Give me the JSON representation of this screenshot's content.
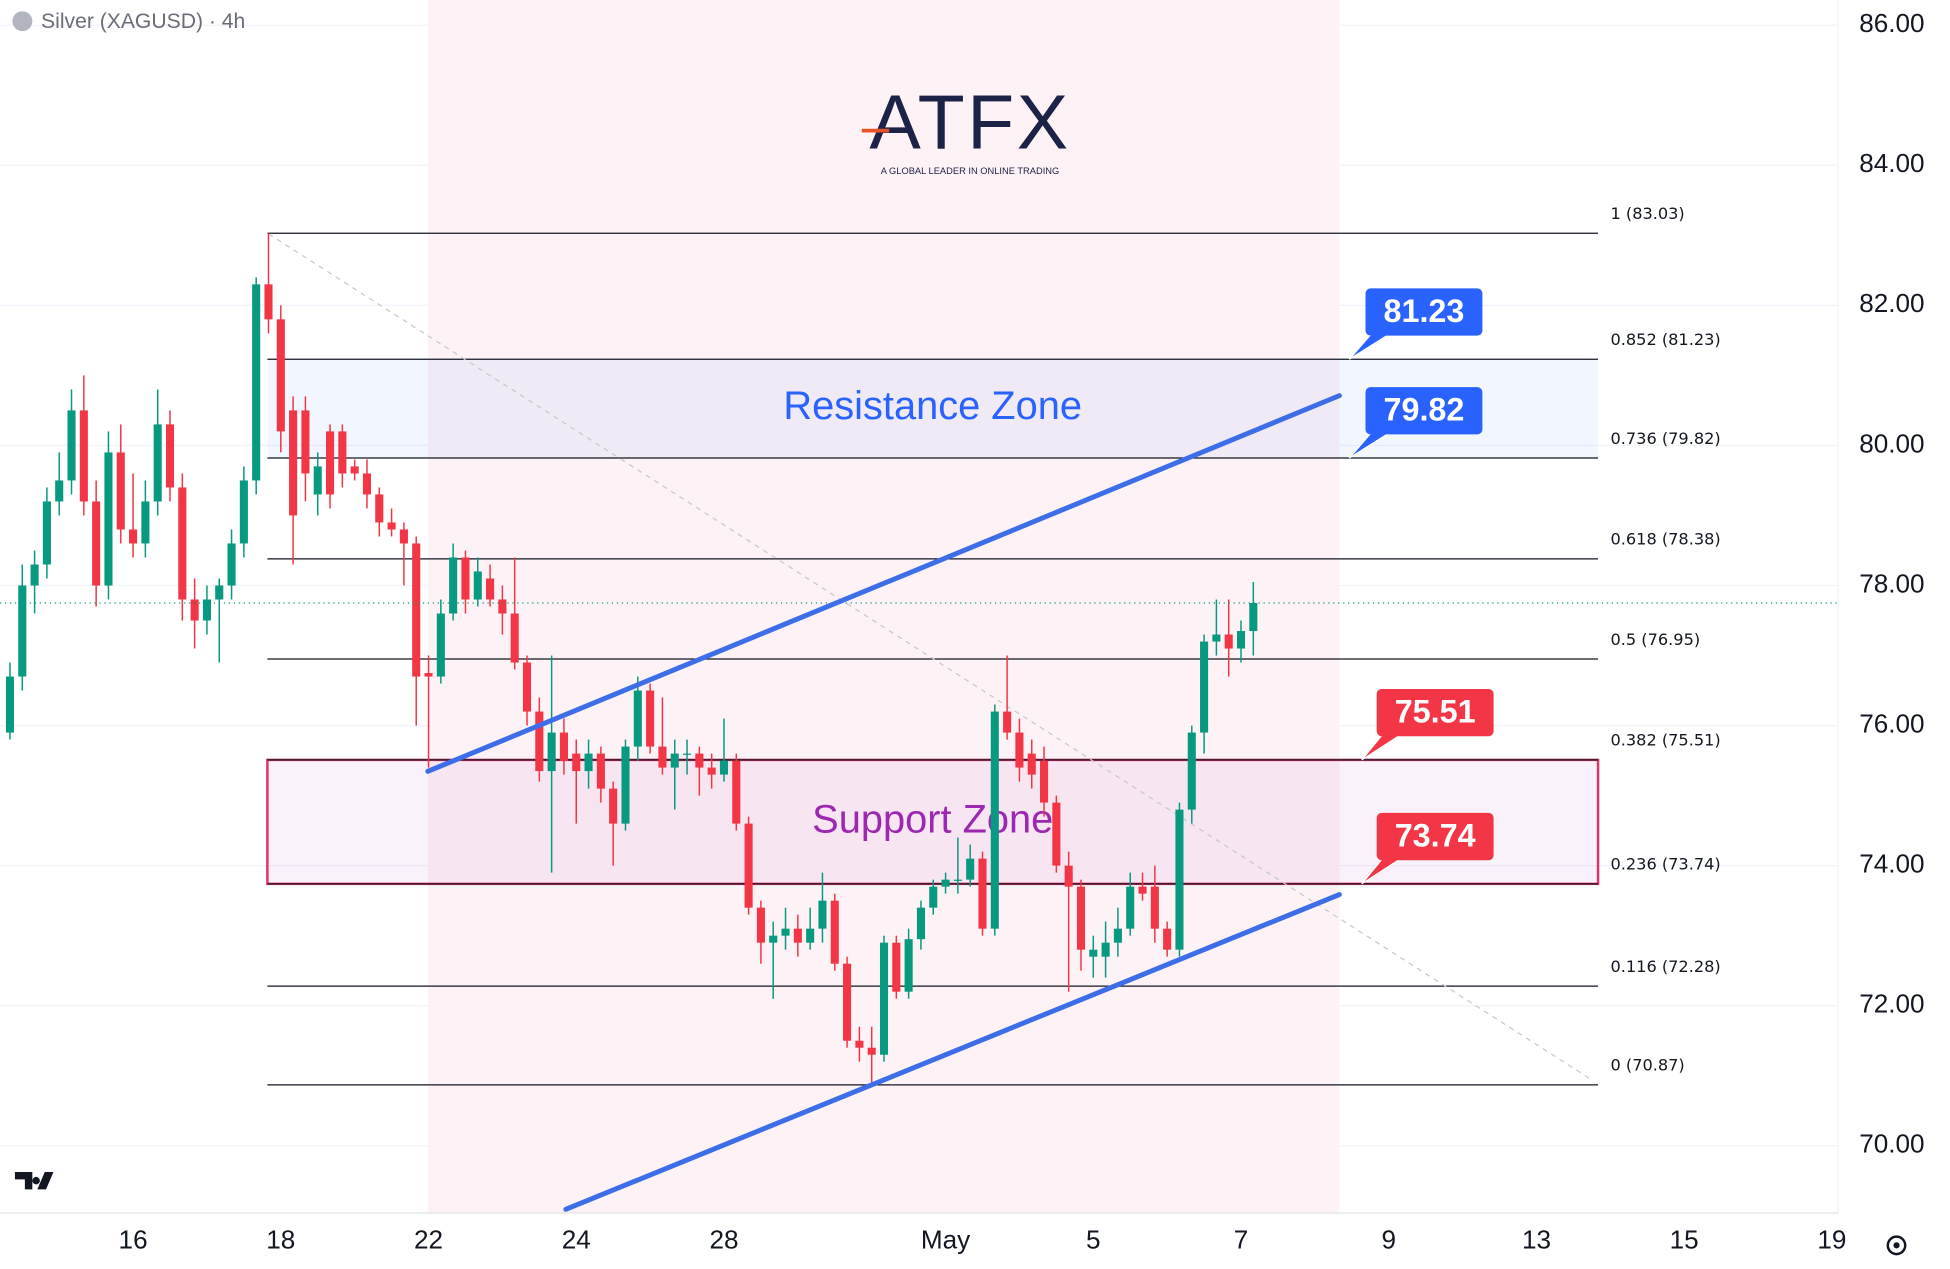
{
  "chart_data": {
    "type": "candlestick",
    "title": "Silver (XAGUSD) · 4h",
    "logo": {
      "text": "ATFX",
      "tagline": "A GLOBAL LEADER IN ONLINE TRADING"
    },
    "xlim": [
      -0.81,
      148.5
    ],
    "ylim": [
      69.04,
      86.36
    ],
    "grid": true,
    "xticks": [
      {
        "value": 10,
        "label": "16"
      },
      {
        "value": 22,
        "label": "18"
      },
      {
        "value": 34,
        "label": "22"
      },
      {
        "value": 46,
        "label": "24"
      },
      {
        "value": 58,
        "label": "28"
      },
      {
        "value": 76,
        "label": "May"
      },
      {
        "value": 88,
        "label": "5"
      },
      {
        "value": 100,
        "label": "7"
      },
      {
        "value": 112,
        "label": "9"
      },
      {
        "value": 124,
        "label": "13"
      },
      {
        "value": 136,
        "label": "15"
      },
      {
        "value": 148,
        "label": "19"
      }
    ],
    "yticks": [
      {
        "value": 70,
        "label": "70.00"
      },
      {
        "value": 72,
        "label": "72.00"
      },
      {
        "value": 74,
        "label": "74.00"
      },
      {
        "value": 76,
        "label": "76.00"
      },
      {
        "value": 78,
        "label": "78.00"
      },
      {
        "value": 80,
        "label": "80.00"
      },
      {
        "value": 82,
        "label": "82.00"
      },
      {
        "value": 84,
        "label": "84.00"
      },
      {
        "value": 86,
        "label": "86.00"
      }
    ],
    "up_color": "#089981",
    "down_color": "#f23645",
    "x": [
      0,
      1,
      2,
      3,
      4,
      5,
      6,
      7,
      8,
      9,
      10,
      11,
      12,
      13,
      14,
      15,
      16,
      17,
      18,
      19,
      20,
      21,
      22,
      23,
      24,
      25,
      26,
      27,
      28,
      29,
      30,
      31,
      32,
      33,
      34,
      35,
      36,
      37,
      38,
      39,
      40,
      41,
      42,
      43,
      44,
      45,
      46,
      47,
      48,
      49,
      50,
      51,
      52,
      53,
      54,
      55,
      56,
      57,
      58,
      59,
      60,
      61,
      62,
      63,
      64,
      65,
      66,
      67,
      68,
      69,
      70,
      71,
      72,
      73,
      74,
      75,
      76,
      77,
      78,
      79,
      80,
      81,
      82,
      83,
      84,
      85,
      86,
      87,
      88,
      89,
      90,
      91,
      92,
      93,
      94,
      95,
      96,
      97,
      98,
      99,
      100,
      101
    ],
    "open": [
      75.9,
      76.7,
      78.0,
      78.3,
      79.2,
      79.5,
      80.5,
      79.2,
      78.0,
      79.9,
      78.8,
      78.6,
      79.2,
      80.3,
      79.4,
      77.8,
      77.5,
      77.8,
      78.0,
      78.6,
      79.5,
      82.3,
      81.8,
      80.5,
      80.5,
      79.3,
      80.2,
      80.2,
      79.7,
      79.6,
      79.3,
      78.9,
      78.8,
      78.6,
      76.75,
      76.7,
      77.6,
      78.4,
      77.8,
      78.1,
      77.8,
      77.6,
      76.9,
      76.2,
      75.35,
      75.9,
      75.6,
      75.35,
      75.6,
      75.1,
      74.6,
      75.7,
      76.5,
      75.7,
      75.4,
      75.6,
      75.6,
      75.4,
      75.3,
      75.5,
      74.6,
      73.4,
      72.9,
      73.0,
      73.1,
      72.9,
      73.1,
      73.5,
      72.6,
      71.5,
      71.4,
      71.3,
      72.9,
      72.2,
      72.95,
      73.4,
      73.7,
      73.8,
      73.8,
      74.1,
      73.1,
      76.2,
      75.9,
      75.6,
      75.5,
      74.9,
      74.0,
      73.7,
      72.7,
      72.7,
      72.9,
      73.1,
      73.7,
      73.7,
      73.1,
      72.8,
      74.8,
      75.9,
      77.2,
      77.3,
      77.1,
      77.35
    ],
    "high": [
      76.9,
      78.3,
      78.5,
      79.4,
      79.9,
      80.8,
      81.0,
      79.5,
      80.2,
      80.3,
      79.6,
      79.5,
      80.8,
      80.5,
      79.6,
      78.1,
      78.0,
      78.1,
      78.8,
      79.7,
      82.4,
      83.03,
      82.0,
      80.7,
      80.7,
      79.9,
      80.3,
      80.3,
      79.8,
      79.8,
      79.4,
      79.1,
      78.9,
      78.7,
      77.0,
      77.8,
      78.6,
      78.5,
      78.4,
      78.3,
      78.0,
      78.4,
      77.0,
      76.4,
      77.0,
      76.1,
      75.8,
      75.8,
      75.7,
      75.2,
      75.8,
      76.7,
      76.6,
      76.4,
      75.8,
      75.8,
      75.7,
      75.6,
      76.1,
      75.6,
      74.7,
      73.5,
      73.2,
      73.4,
      73.3,
      73.4,
      73.9,
      73.6,
      72.7,
      71.7,
      71.7,
      73.0,
      73.0,
      73.1,
      73.5,
      73.8,
      73.9,
      74.4,
      74.3,
      74.2,
      76.3,
      77.0,
      76.1,
      75.8,
      75.7,
      75.0,
      74.2,
      73.8,
      73.0,
      73.2,
      73.4,
      73.9,
      73.9,
      74.0,
      73.2,
      74.9,
      76.0,
      77.3,
      77.8,
      77.8,
      77.5,
      78.05
    ],
    "low": [
      75.8,
      76.5,
      77.6,
      78.1,
      79.0,
      79.3,
      79.0,
      77.7,
      77.8,
      78.6,
      78.4,
      78.4,
      79.0,
      79.2,
      77.5,
      77.1,
      77.3,
      76.9,
      77.8,
      78.4,
      79.3,
      81.6,
      79.9,
      78.3,
      79.2,
      79.0,
      79.1,
      79.4,
      79.5,
      79.1,
      78.7,
      78.7,
      78.0,
      76.0,
      75.4,
      76.6,
      77.5,
      77.6,
      77.7,
      77.7,
      77.3,
      76.8,
      76.0,
      75.2,
      73.9,
      75.3,
      74.6,
      75.1,
      74.9,
      74.0,
      74.5,
      75.5,
      75.6,
      75.3,
      74.8,
      75.3,
      75.0,
      75.1,
      75.2,
      74.5,
      73.3,
      72.6,
      72.1,
      72.8,
      72.7,
      72.8,
      72.9,
      72.5,
      71.4,
      71.2,
      70.87,
      71.2,
      72.1,
      72.1,
      72.8,
      73.3,
      73.6,
      73.6,
      73.7,
      73.0,
      73.0,
      75.8,
      75.2,
      75.1,
      74.7,
      73.9,
      72.2,
      72.5,
      72.4,
      72.4,
      72.7,
      73.0,
      73.5,
      72.9,
      72.7,
      72.7,
      74.6,
      75.6,
      77.0,
      76.7,
      76.9,
      77.0
    ],
    "close": [
      76.7,
      78.0,
      78.3,
      79.2,
      79.5,
      80.5,
      79.2,
      78.0,
      79.9,
      78.8,
      78.6,
      79.2,
      80.3,
      79.4,
      77.8,
      77.5,
      77.8,
      78.0,
      78.6,
      79.5,
      82.3,
      81.8,
      80.2,
      79.0,
      79.6,
      79.7,
      79.3,
      79.6,
      79.6,
      79.3,
      78.9,
      78.8,
      78.6,
      76.7,
      76.7,
      77.6,
      78.4,
      77.8,
      78.2,
      77.8,
      77.6,
      76.9,
      76.2,
      75.35,
      75.9,
      75.5,
      75.35,
      75.6,
      75.1,
      74.6,
      75.7,
      76.5,
      75.7,
      75.4,
      75.6,
      75.6,
      75.4,
      75.3,
      75.5,
      74.6,
      73.4,
      72.9,
      73.0,
      73.1,
      72.9,
      73.1,
      73.5,
      72.6,
      71.5,
      71.4,
      71.3,
      72.9,
      72.2,
      72.95,
      73.4,
      73.7,
      73.8,
      73.8,
      74.1,
      73.1,
      76.2,
      75.9,
      75.4,
      75.3,
      74.9,
      74.0,
      73.7,
      72.8,
      72.8,
      72.9,
      73.1,
      73.7,
      73.6,
      73.1,
      72.8,
      74.8,
      75.9,
      77.2,
      77.3,
      77.1,
      77.35,
      77.75
    ],
    "fib_levels": [
      {
        "value": 83.03,
        "label": "1 (83.03)"
      },
      {
        "value": 81.23,
        "label": "0.852 (81.23)"
      },
      {
        "value": 79.82,
        "label": "0.736 (79.82)"
      },
      {
        "value": 78.38,
        "label": "0.618 (78.38)"
      },
      {
        "value": 76.95,
        "label": "0.5 (76.95)"
      },
      {
        "value": 75.51,
        "label": "0.382 (75.51)"
      },
      {
        "value": 73.74,
        "label": "0.236 (73.74)"
      },
      {
        "value": 72.28,
        "label": "0.116 (72.28)"
      },
      {
        "value": 70.87,
        "label": "0 (70.87)"
      }
    ],
    "zones": [
      {
        "label": "Resistance Zone",
        "from": 79.82,
        "to": 81.23,
        "color": "#2962ff"
      },
      {
        "label": "Support Zone",
        "from": 73.74,
        "to": 75.51,
        "color": "#9c27b0"
      }
    ],
    "price_tags": [
      {
        "value": 81.23,
        "color": "#2962ff"
      },
      {
        "value": 79.82,
        "color": "#2962ff"
      },
      {
        "value": 75.51,
        "color": "#f23645"
      },
      {
        "value": 73.74,
        "color": "#f23645"
      }
    ]
  }
}
